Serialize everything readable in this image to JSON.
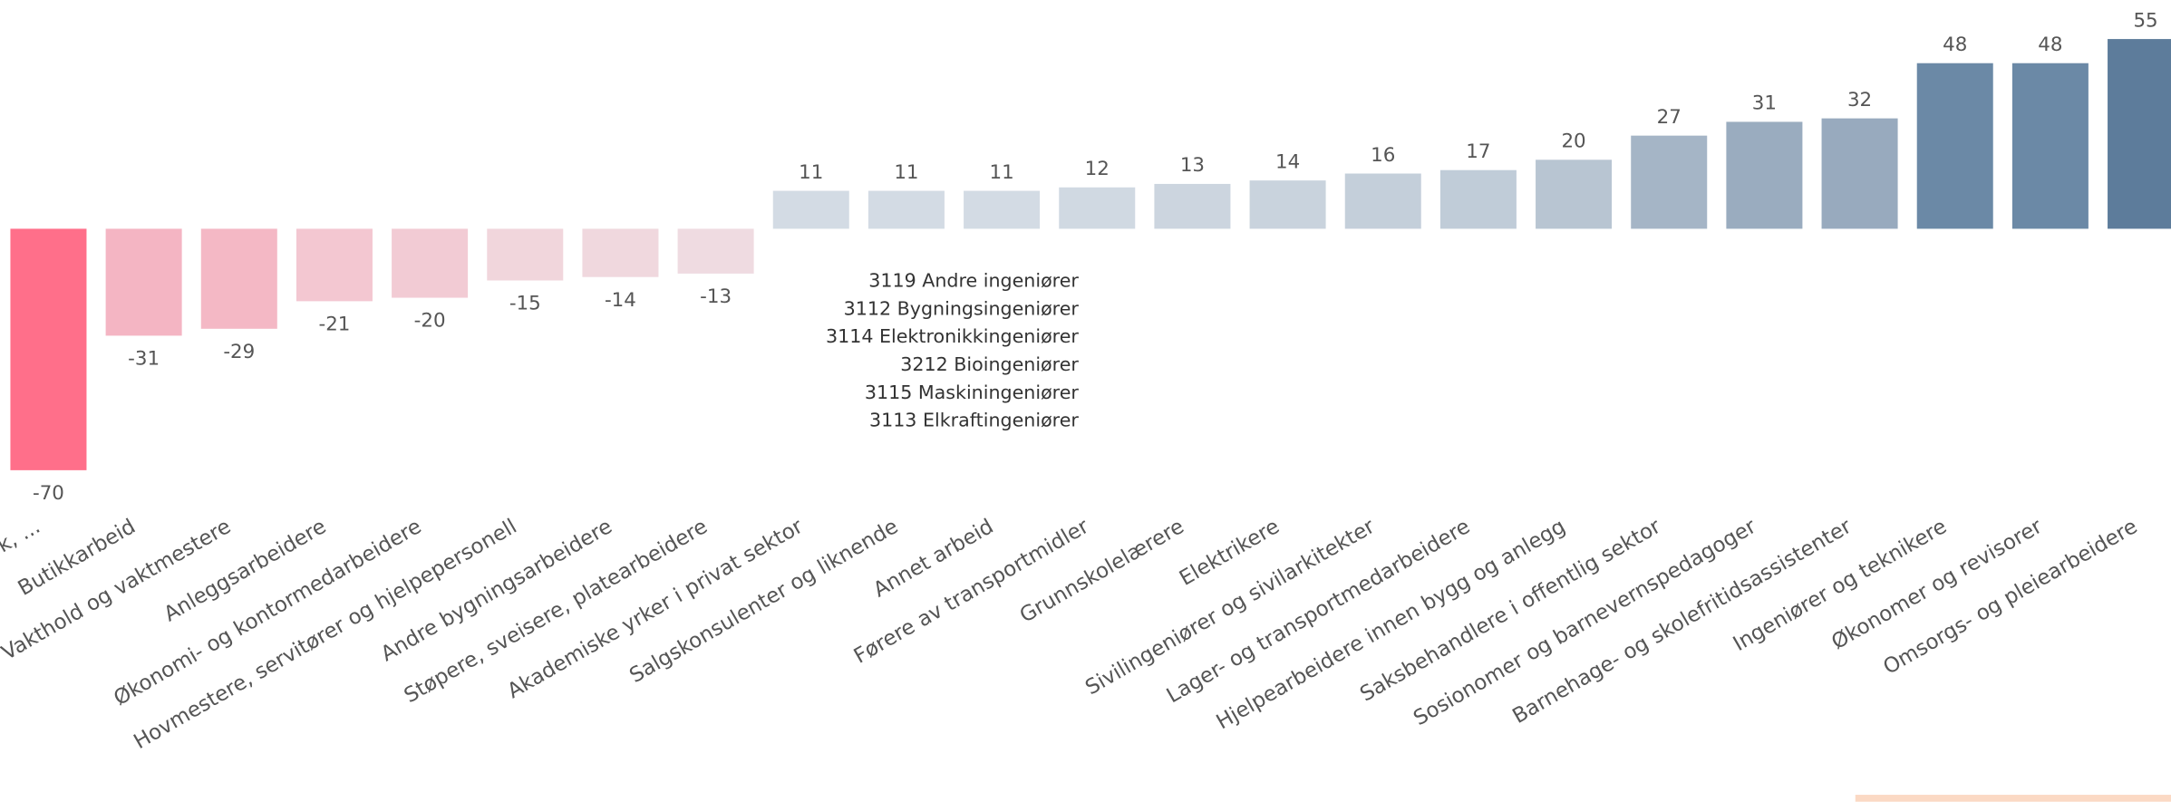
{
  "chart_data": {
    "type": "bar",
    "categories": [
      "k, ...",
      "Butikkarbeid",
      "Vakthold og vaktmestere",
      "Anleggsarbeidere",
      "Økonomi- og kontormedarbeidere",
      "Hovmestere, servitører og hjelpepersonell",
      "Andre bygningsarbeidere",
      "Støpere, sveisere, platearbeidere",
      "Akademiske yrker i privat sektor",
      "Salgskonsulenter og liknende",
      "Annet arbeid",
      "Førere av transportmidler",
      "Grunnskolelærere",
      "Elektrikere",
      "Sivilingeniører og sivilarkitekter",
      "Lager- og transportmedarbeidere",
      "Hjelpearbeidere innen bygg og anlegg",
      "Saksbehandlere i offentlig sektor",
      "Sosionomer og barnevernspedagoger",
      "Barnehage- og skolefritidsassistenter",
      "Ingeniører og teknikere",
      "Økonomer og revisorer",
      "Omsorgs- og pleiearbeidere"
    ],
    "values": [
      -70,
      -31,
      -29,
      -21,
      -20,
      -15,
      -14,
      -13,
      11,
      11,
      11,
      12,
      13,
      14,
      16,
      17,
      20,
      27,
      31,
      32,
      48,
      48,
      55
    ],
    "colors": [
      "#ff6f8a",
      "#f4b5c3",
      "#f4b8c5",
      "#f3c7d1",
      "#f2cbd4",
      "#f1d6dc",
      "#f0d8de",
      "#efdbe1",
      "#d3dbe4",
      "#d3dbe4",
      "#d3dbe4",
      "#d0d9e2",
      "#ccd5df",
      "#c9d3dd",
      "#c4cfda",
      "#c0ccd8",
      "#b8c5d2",
      "#a5b5c6",
      "#9aacbf",
      "#98aabe",
      "#6b89a6",
      "#6b89a6",
      "#5d7c9b"
    ],
    "ylim": [
      -70,
      55
    ],
    "annotations": [
      "3119 Andre ingeniører",
      "3112 Bygningsingeniører",
      "3114 Elektronikkingeniører",
      "3212 Bioingeniører",
      "3115 Maskiningeniører",
      "3113 Elkraftingeniører"
    ]
  }
}
